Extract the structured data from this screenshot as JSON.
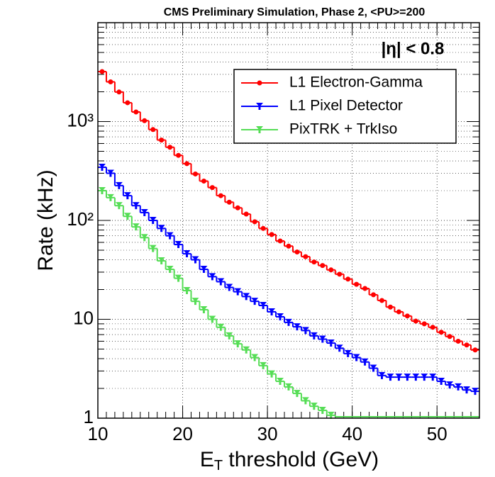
{
  "chart_data": {
    "type": "histogram",
    "title": "CMS Preliminary Simulation, Phase 2, <PU>=200",
    "annotation": "|η| < 0.8",
    "y_label": "Rate (kHz)",
    "x_label": {
      "symbol": "E",
      "subscript": "T",
      "text": " threshold (GeV)"
    },
    "log_y": true,
    "grid": true,
    "legend_position": "top-right",
    "xlim": [
      10,
      55
    ],
    "ylim": [
      1,
      10000
    ],
    "xticks": [
      10,
      20,
      30,
      40,
      50
    ],
    "yticks": [
      1,
      10,
      {
        "value": 100,
        "label": "10²"
      },
      {
        "value": 1000,
        "label": "10³"
      }
    ],
    "bins": [
      10,
      11,
      12,
      13,
      14,
      15,
      16,
      17,
      18,
      19,
      20,
      21,
      22,
      23,
      24,
      25,
      26,
      27,
      28,
      29,
      30,
      31,
      32,
      33,
      34,
      35,
      36,
      37,
      38,
      39,
      40,
      41,
      42,
      43,
      44,
      45,
      46,
      47,
      48,
      49,
      50,
      51,
      52,
      53,
      54,
      55
    ],
    "series": [
      {
        "name": "L1 Electron-Gamma",
        "color": "#ff0000",
        "marker": "circle",
        "values": [
          3200,
          2520,
          1990,
          1550,
          1250,
          1020,
          830,
          650,
          550,
          455,
          375,
          295,
          250,
          215,
          178,
          153,
          134,
          116,
          97,
          83,
          72,
          62,
          55,
          48,
          43,
          38,
          35,
          31.6,
          28.6,
          25.5,
          22.6,
          20.5,
          17.7,
          15.5,
          13.3,
          11.9,
          10.8,
          9.6,
          9.0,
          8.3,
          7.4,
          6.7,
          6.0,
          5.5,
          4.9
        ]
      },
      {
        "name": "L1 Pixel Detector",
        "color": "#0000ff",
        "marker": "triangle",
        "values": [
          345,
          300,
          225,
          178,
          141,
          120,
          100,
          83,
          70,
          57,
          46,
          40,
          32,
          27,
          24,
          21,
          19,
          17,
          15.2,
          13.8,
          11.9,
          10.6,
          9.3,
          8.4,
          7.7,
          6.8,
          6.3,
          5.75,
          5.1,
          4.5,
          4.1,
          3.7,
          3.2,
          2.7,
          2.6,
          2.6,
          2.6,
          2.6,
          2.6,
          2.6,
          2.36,
          2.17,
          2.07,
          1.93,
          1.87
        ]
      },
      {
        "name": "PixTRK + TrkIso",
        "color": "#55dd55",
        "marker": "triangle",
        "values": [
          200,
          170,
          141,
          110,
          86,
          67,
          52,
          39,
          32,
          26,
          19.5,
          15.2,
          12.5,
          10,
          8.3,
          6.8,
          5.65,
          4.9,
          4.1,
          3.4,
          2.8,
          2.36,
          2.07,
          1.78,
          1.5,
          1.32,
          1.2,
          1.07,
          1,
          1,
          1,
          1,
          1,
          1,
          1,
          1,
          1,
          1,
          1,
          1,
          1,
          1,
          1,
          1,
          1
        ]
      }
    ]
  }
}
